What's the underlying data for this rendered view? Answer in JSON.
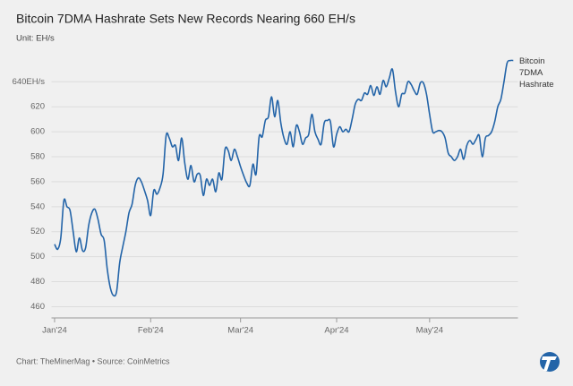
{
  "chart_data": {
    "type": "line",
    "title": "Bitcoin 7DMA Hashrate Sets New Records Nearing 660 EH/s",
    "subtitle": "Unit: EH/s",
    "footer": "Chart: TheMinerMag • Source: CoinMetrics",
    "x": [
      0,
      1,
      2,
      3,
      4,
      5,
      6,
      7,
      8,
      9,
      10,
      11,
      12,
      13,
      14,
      15,
      16,
      17,
      18,
      19,
      20,
      21,
      22,
      23,
      24,
      25,
      26,
      27,
      28,
      29,
      30,
      31,
      32,
      33,
      34,
      35,
      36,
      37,
      38,
      39,
      40,
      41,
      42,
      43,
      44,
      45,
      46,
      47,
      48,
      49,
      50,
      51,
      52,
      53,
      54,
      55,
      56,
      57,
      58,
      59,
      60,
      61,
      62,
      63,
      64,
      65,
      66,
      67,
      68,
      69,
      70,
      71,
      72,
      73,
      74,
      75,
      76,
      77,
      78,
      79,
      80,
      81,
      82,
      83,
      84,
      85,
      86,
      87,
      88,
      89,
      90,
      91,
      92,
      93,
      94,
      95,
      96,
      97,
      98,
      99,
      100,
      101,
      102,
      103,
      104,
      105,
      106,
      107,
      108,
      109,
      110,
      111,
      112,
      113,
      114,
      115,
      116,
      117,
      118,
      119,
      120,
      121,
      122,
      123,
      124,
      125,
      126,
      127,
      128,
      129,
      130,
      131,
      132,
      133,
      134,
      135,
      136,
      137,
      138,
      139,
      140,
      141,
      142,
      143,
      144,
      145,
      146,
      147,
      148
    ],
    "series": [
      {
        "name": "Bitcoin 7DMA Hashrate",
        "color": "#2364a8",
        "values": [
          510,
          506,
          515,
          545,
          540,
          537,
          520,
          504,
          515,
          505,
          507,
          525,
          535,
          538,
          530,
          518,
          513,
          490,
          475,
          469,
          472,
          495,
          508,
          520,
          535,
          542,
          557,
          563,
          560,
          553,
          545,
          533,
          553,
          550,
          555,
          566,
          597,
          595,
          588,
          589,
          577,
          595,
          575,
          562,
          573,
          560,
          566,
          565,
          549,
          562,
          557,
          562,
          552,
          567,
          562,
          586,
          585,
          577,
          586,
          580,
          572,
          565,
          559,
          557,
          574,
          566,
          596,
          596,
          609,
          612,
          628,
          612,
          625,
          607,
          595,
          590,
          600,
          588,
          605,
          600,
          590,
          595,
          598,
          614,
          600,
          594,
          590,
          607,
          609,
          608,
          588,
          598,
          604,
          600,
          602,
          600,
          610,
          622,
          626,
          625,
          631,
          630,
          637,
          629,
          636,
          630,
          641,
          636,
          643,
          650,
          632,
          620,
          630,
          631,
          640,
          638,
          633,
          630,
          639,
          639,
          630,
          614,
          600,
          600,
          601,
          600,
          595,
          583,
          580,
          577,
          580,
          586,
          578,
          589,
          593,
          590,
          594,
          597,
          580,
          595,
          597,
          600,
          608,
          620,
          626,
          640,
          655,
          657,
          657
        ]
      }
    ],
    "xlim": [
      -1,
      149.5
    ],
    "xticks": [
      {
        "value": 0,
        "label": "Jan'24"
      },
      {
        "value": 31,
        "label": "Feb'24"
      },
      {
        "value": 60,
        "label": "Mar'24"
      },
      {
        "value": 91,
        "label": "Apr'24"
      },
      {
        "value": 121,
        "label": "May'24"
      }
    ],
    "ylim": [
      451,
      661
    ],
    "yticks": [
      460,
      480,
      500,
      520,
      540,
      560,
      580,
      600,
      620,
      {
        "value": 640,
        "label": "640EH/s"
      }
    ],
    "grid": true
  }
}
